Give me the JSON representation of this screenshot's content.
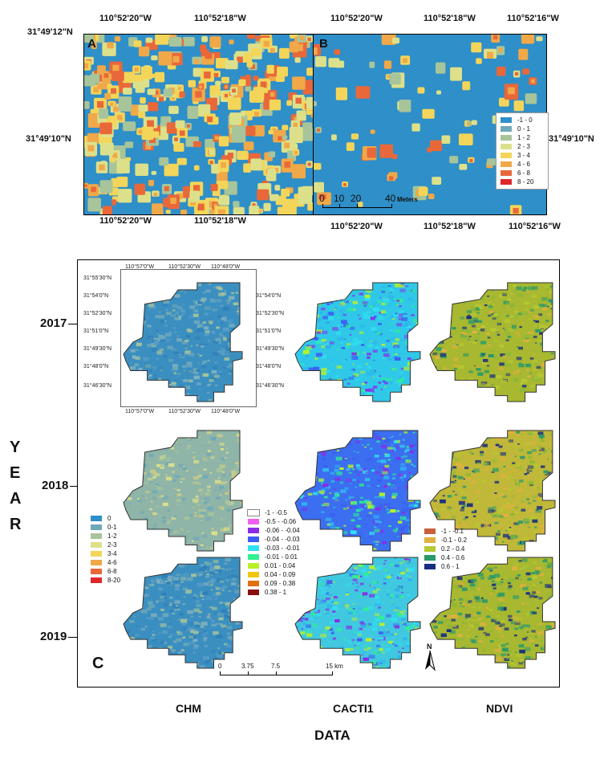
{
  "top": {
    "panel_a_label": "A",
    "panel_b_label": "B",
    "coords_top_a": [
      "110°52'20\"W",
      "110°52'18\"W"
    ],
    "coords_top_b": [
      "110°52'20\"W",
      "110°52'18\"W",
      "110°52'16\"W"
    ],
    "coords_bottom_a": [
      "110°52'20\"W",
      "110°52'18\"W"
    ],
    "coords_bottom_b": [
      "110°52'20\"W",
      "110°52'18\"W",
      "110°52'16\"W"
    ],
    "lat_top": "31°49'12\"N",
    "lat_mid": "31°49'10\"N",
    "lat_right": "31°49'10\"N",
    "scale_ticks": [
      "0",
      "10",
      "20",
      "40"
    ],
    "scale_unit": "Meters",
    "legend": [
      {
        "label": "-1 - 0",
        "color": "#2f8fc8"
      },
      {
        "label": "0 - 1",
        "color": "#6fa8b8"
      },
      {
        "label": "1 - 2",
        "color": "#a7c49a"
      },
      {
        "label": "2 - 3",
        "color": "#dde08a"
      },
      {
        "label": "3 - 4",
        "color": "#f3d55a"
      },
      {
        "label": "4 - 6",
        "color": "#f0a848"
      },
      {
        "label": "6 - 8",
        "color": "#e8683a"
      },
      {
        "label": "8 - 20",
        "color": "#e0262a"
      }
    ]
  },
  "panel_c": {
    "label": "C",
    "years": [
      "2017",
      "2018",
      "2019"
    ],
    "year_axis_title": [
      "Y",
      "E",
      "A",
      "R"
    ],
    "columns": [
      "CHM",
      "CACTI1",
      "NDVI"
    ],
    "data_axis_title": "DATA",
    "inset_top_coords": [
      "110°57'0\"W",
      "110°52'30\"W",
      "110°48'0\"W"
    ],
    "inset_bottom_coords": [
      "110°57'0\"W",
      "110°52'30\"W",
      "110°48'0\"W"
    ],
    "inset_left_coords": [
      "31°55'30\"N",
      "31°54'0\"N",
      "31°52'30\"N",
      "31°51'0\"N",
      "31°49'30\"N",
      "31°48'0\"N",
      "31°46'30\"N"
    ],
    "inset_right_coords": [
      "31°54'0\"N",
      "31°52'30\"N",
      "31°51'0\"N",
      "31°49'30\"N",
      "31°48'0\"N",
      "31°46'30\"N"
    ],
    "chm_legend": [
      {
        "label": "0",
        "color": "#2f8fc8"
      },
      {
        "label": "0-1",
        "color": "#6fa8b8"
      },
      {
        "label": "1-2",
        "color": "#a7c49a"
      },
      {
        "label": "2-3",
        "color": "#dde08a"
      },
      {
        "label": "3-4",
        "color": "#f3d55a"
      },
      {
        "label": "4-6",
        "color": "#f0a848"
      },
      {
        "label": "6-8",
        "color": "#e8683a"
      },
      {
        "label": "8-20",
        "color": "#e0262a"
      }
    ],
    "cacti_legend": [
      {
        "label": "-1 - -0.5",
        "color": "#ffffff"
      },
      {
        "label": "-0.5 - -0.06",
        "color": "#f060f0"
      },
      {
        "label": "-0.06 - -0.04",
        "color": "#8a2be8"
      },
      {
        "label": "-0.04 - -0.03",
        "color": "#3b5ef0"
      },
      {
        "label": "-0.03 - -0.01",
        "color": "#30e0f0"
      },
      {
        "label": "-0.01 - 0.01",
        "color": "#30f090"
      },
      {
        "label": "0.01 - 0.04",
        "color": "#b8f028"
      },
      {
        "label": "0.04 - 0.09",
        "color": "#f0c810"
      },
      {
        "label": "0.09 - 0.38",
        "color": "#e07010"
      },
      {
        "label": "0.38 - 1",
        "color": "#8a1010"
      }
    ],
    "ndvi_legend": [
      {
        "label": "-1 - -0.1",
        "color": "#c8603a"
      },
      {
        "label": "-0.1 - 0.2",
        "color": "#e0b040"
      },
      {
        "label": "0.2 - 0.4",
        "color": "#b8c830"
      },
      {
        "label": "0.4 - 0.6",
        "color": "#2a9a6a"
      },
      {
        "label": "0.6 - 1",
        "color": "#1a2f80"
      }
    ],
    "scale_ticks": [
      "0",
      "3.75",
      "7.5",
      "15 km"
    ],
    "north_label": "N"
  }
}
